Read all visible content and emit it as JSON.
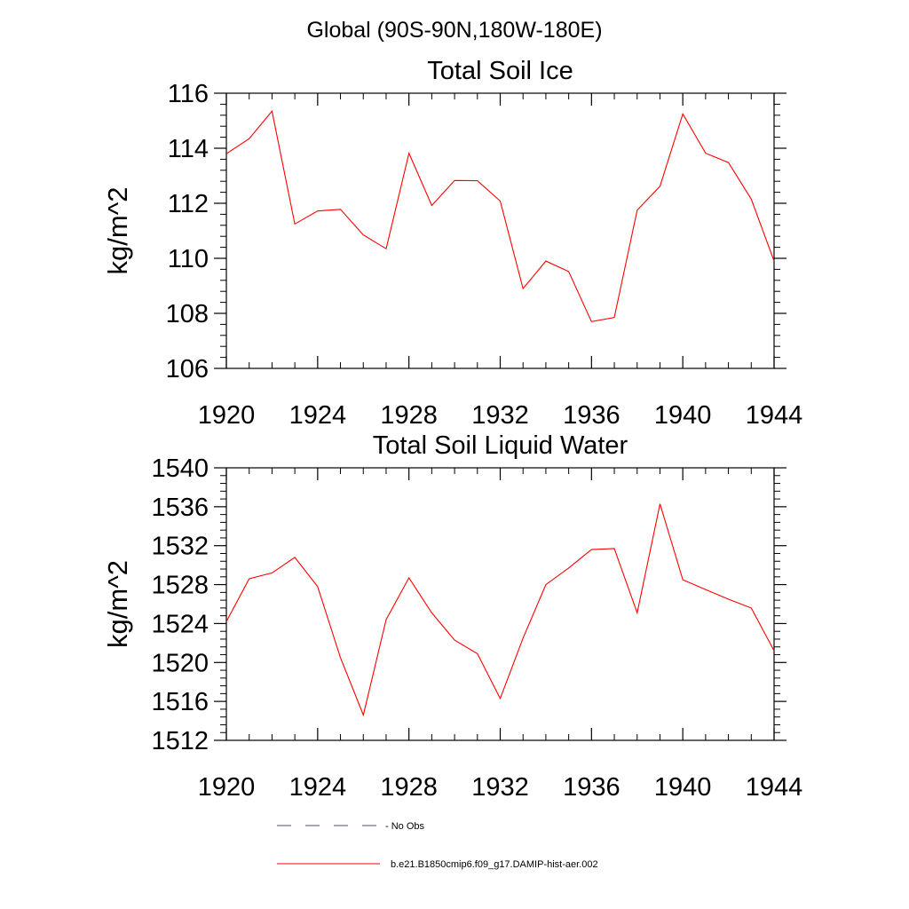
{
  "figure": {
    "main_title": "Global (90S-90N,180W-180E)"
  },
  "chart_data": [
    {
      "type": "line",
      "title": "Total Soil Ice",
      "xlabel": "",
      "ylabel": "kg/m^2",
      "xlim": [
        1920,
        1944
      ],
      "ylim": [
        106,
        116
      ],
      "xticks": [
        1920,
        1924,
        1928,
        1932,
        1936,
        1940,
        1944
      ],
      "yticks": [
        106,
        108,
        110,
        112,
        114,
        116
      ],
      "x": [
        1920,
        1921,
        1922,
        1923,
        1924,
        1925,
        1926,
        1927,
        1928,
        1929,
        1930,
        1931,
        1932,
        1933,
        1934,
        1935,
        1936,
        1937,
        1938,
        1939,
        1940,
        1941,
        1942,
        1943,
        1944
      ],
      "series": [
        {
          "name": "b.e21.B1850cmip6.f09_g17.DAMIP-hist-aer.002",
          "color": "#ff0000",
          "values": [
            113.8,
            114.35,
            115.35,
            111.25,
            111.72,
            111.78,
            110.85,
            110.35,
            113.82,
            111.92,
            112.83,
            112.82,
            112.08,
            108.9,
            109.9,
            109.52,
            107.7,
            107.85,
            111.75,
            112.62,
            115.25,
            113.82,
            113.48,
            112.15,
            109.9
          ]
        }
      ]
    },
    {
      "type": "line",
      "title": "Total Soil Liquid Water",
      "xlabel": "",
      "ylabel": "kg/m^2",
      "xlim": [
        1920,
        1944
      ],
      "ylim": [
        1512,
        1540
      ],
      "xticks": [
        1920,
        1924,
        1928,
        1932,
        1936,
        1940,
        1944
      ],
      "yticks": [
        1512,
        1516,
        1520,
        1524,
        1528,
        1532,
        1536,
        1540
      ],
      "x": [
        1920,
        1921,
        1922,
        1923,
        1924,
        1925,
        1926,
        1927,
        1928,
        1929,
        1930,
        1931,
        1932,
        1933,
        1934,
        1935,
        1936,
        1937,
        1938,
        1939,
        1940,
        1941,
        1942,
        1943,
        1944
      ],
      "series": [
        {
          "name": "b.e21.B1850cmip6.f09_g17.DAMIP-hist-aer.002",
          "color": "#ff0000",
          "values": [
            1524.2,
            1528.6,
            1529.2,
            1530.8,
            1527.8,
            1520.5,
            1514.6,
            1524.4,
            1528.7,
            1525.1,
            1522.3,
            1520.9,
            1516.3,
            1522.5,
            1528.0,
            1529.7,
            1531.6,
            1531.7,
            1525.1,
            1536.3,
            1528.5,
            1527.5,
            1526.5,
            1525.6,
            1521.2
          ]
        }
      ]
    }
  ],
  "legend": [
    {
      "label": "No Obs",
      "style": "dashed",
      "color": "#4a4a7a"
    },
    {
      "label": "b.e21.B1850cmip6.f09_g17.DAMIP-hist-aer.002",
      "style": "solid",
      "color": "#ff0000"
    }
  ]
}
